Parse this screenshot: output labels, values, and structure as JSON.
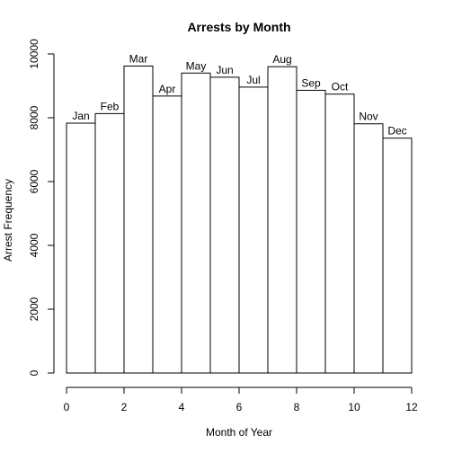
{
  "chart_data": {
    "type": "bar",
    "title": "Arrests by Month",
    "xlabel": "Month of Year",
    "ylabel": "Arrest Frequency",
    "categories": [
      "Jan",
      "Feb",
      "Mar",
      "Apr",
      "May",
      "Jun",
      "Jul",
      "Aug",
      "Sep",
      "Oct",
      "Nov",
      "Dec"
    ],
    "bin_edges": [
      0,
      1,
      2,
      3,
      4,
      5,
      6,
      7,
      8,
      9,
      10,
      11,
      12
    ],
    "values": [
      7830,
      8130,
      9620,
      8680,
      9400,
      9270,
      8960,
      9600,
      8860,
      8740,
      7810,
      7360
    ],
    "xlim": [
      0,
      12
    ],
    "ylim": [
      0,
      10000
    ],
    "x_ticks": [
      0,
      2,
      4,
      6,
      8,
      10,
      12
    ],
    "y_ticks": [
      0,
      2000,
      4000,
      6000,
      8000,
      10000
    ],
    "grid": false,
    "legend": "none"
  }
}
